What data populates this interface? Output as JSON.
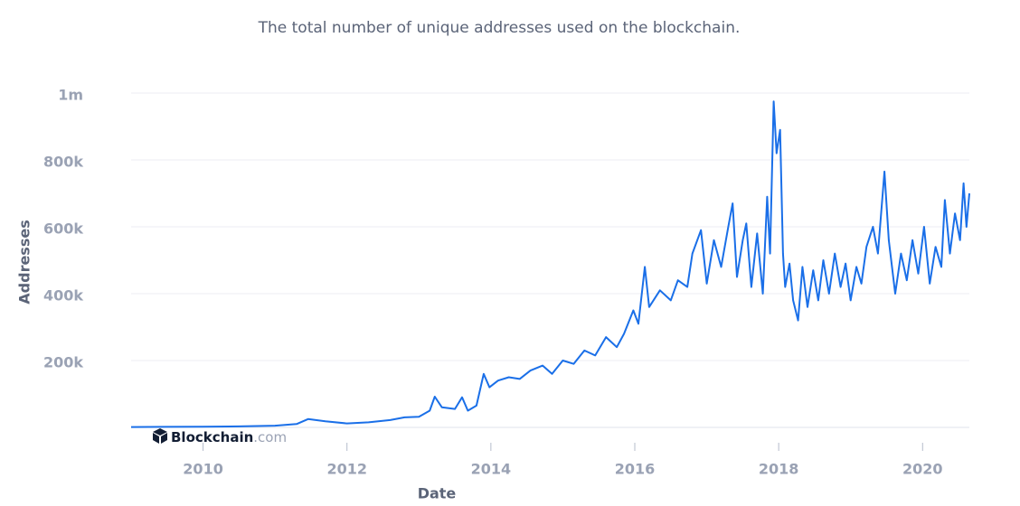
{
  "chart_data": {
    "type": "line",
    "subtitle": "The total number of unique addresses used on the blockchain.",
    "ylabel": "Addresses",
    "xlabel": "Date",
    "brand": [
      "Blockchain",
      ".com"
    ],
    "ylim": [
      0,
      1000000
    ],
    "yticks": [
      {
        "value": 200000,
        "label": "200k"
      },
      {
        "value": 400000,
        "label": "400k"
      },
      {
        "value": 600000,
        "label": "600k"
      },
      {
        "value": 800000,
        "label": "800k"
      },
      {
        "value": 1000000,
        "label": "1m"
      }
    ],
    "xlim": [
      2009.0,
      2020.65
    ],
    "xticks": [
      2010,
      2012,
      2014,
      2016,
      2018,
      2020
    ],
    "grid": true,
    "series": [
      {
        "color": "#1a6fe8",
        "x": [
          2009.0,
          2009.5,
          2010.0,
          2010.5,
          2011.0,
          2011.3,
          2011.46,
          2011.7,
          2012.0,
          2012.3,
          2012.6,
          2012.8,
          2013.0,
          2013.15,
          2013.22,
          2013.32,
          2013.5,
          2013.6,
          2013.68,
          2013.8,
          2013.9,
          2013.98,
          2014.1,
          2014.25,
          2014.4,
          2014.55,
          2014.72,
          2014.85,
          2015.0,
          2015.15,
          2015.3,
          2015.45,
          2015.6,
          2015.75,
          2015.85,
          2015.98,
          2016.05,
          2016.14,
          2016.2,
          2016.35,
          2016.5,
          2016.6,
          2016.73,
          2016.8,
          2016.92,
          2017.0,
          2017.1,
          2017.2,
          2017.3,
          2017.36,
          2017.42,
          2017.5,
          2017.55,
          2017.62,
          2017.7,
          2017.78,
          2017.84,
          2017.88,
          2017.93,
          2017.97,
          2018.02,
          2018.06,
          2018.09,
          2018.15,
          2018.2,
          2018.27,
          2018.33,
          2018.4,
          2018.48,
          2018.55,
          2018.62,
          2018.7,
          2018.78,
          2018.86,
          2018.93,
          2019.0,
          2019.08,
          2019.15,
          2019.22,
          2019.31,
          2019.38,
          2019.47,
          2019.53,
          2019.62,
          2019.7,
          2019.78,
          2019.86,
          2019.94,
          2020.02,
          2020.1,
          2020.18,
          2020.26,
          2020.31,
          2020.38,
          2020.45,
          2020.52,
          2020.57,
          2020.61,
          2020.65
        ],
        "values": [
          1000,
          1500,
          2000,
          3000,
          5000,
          10000,
          25000,
          18000,
          12000,
          15000,
          22000,
          30000,
          32000,
          50000,
          92000,
          60000,
          55000,
          90000,
          50000,
          65000,
          160000,
          120000,
          140000,
          150000,
          145000,
          170000,
          185000,
          160000,
          200000,
          190000,
          230000,
          215000,
          270000,
          240000,
          280000,
          350000,
          310000,
          480000,
          360000,
          410000,
          380000,
          440000,
          420000,
          520000,
          590000,
          430000,
          560000,
          480000,
          600000,
          670000,
          450000,
          560000,
          610000,
          420000,
          580000,
          400000,
          690000,
          520000,
          975000,
          820000,
          890000,
          520000,
          420000,
          490000,
          380000,
          320000,
          480000,
          360000,
          470000,
          380000,
          500000,
          400000,
          520000,
          420000,
          490000,
          380000,
          480000,
          430000,
          540000,
          600000,
          520000,
          765000,
          560000,
          400000,
          520000,
          440000,
          560000,
          460000,
          600000,
          430000,
          540000,
          480000,
          680000,
          520000,
          640000,
          560000,
          730000,
          600000,
          700000
        ]
      }
    ]
  }
}
